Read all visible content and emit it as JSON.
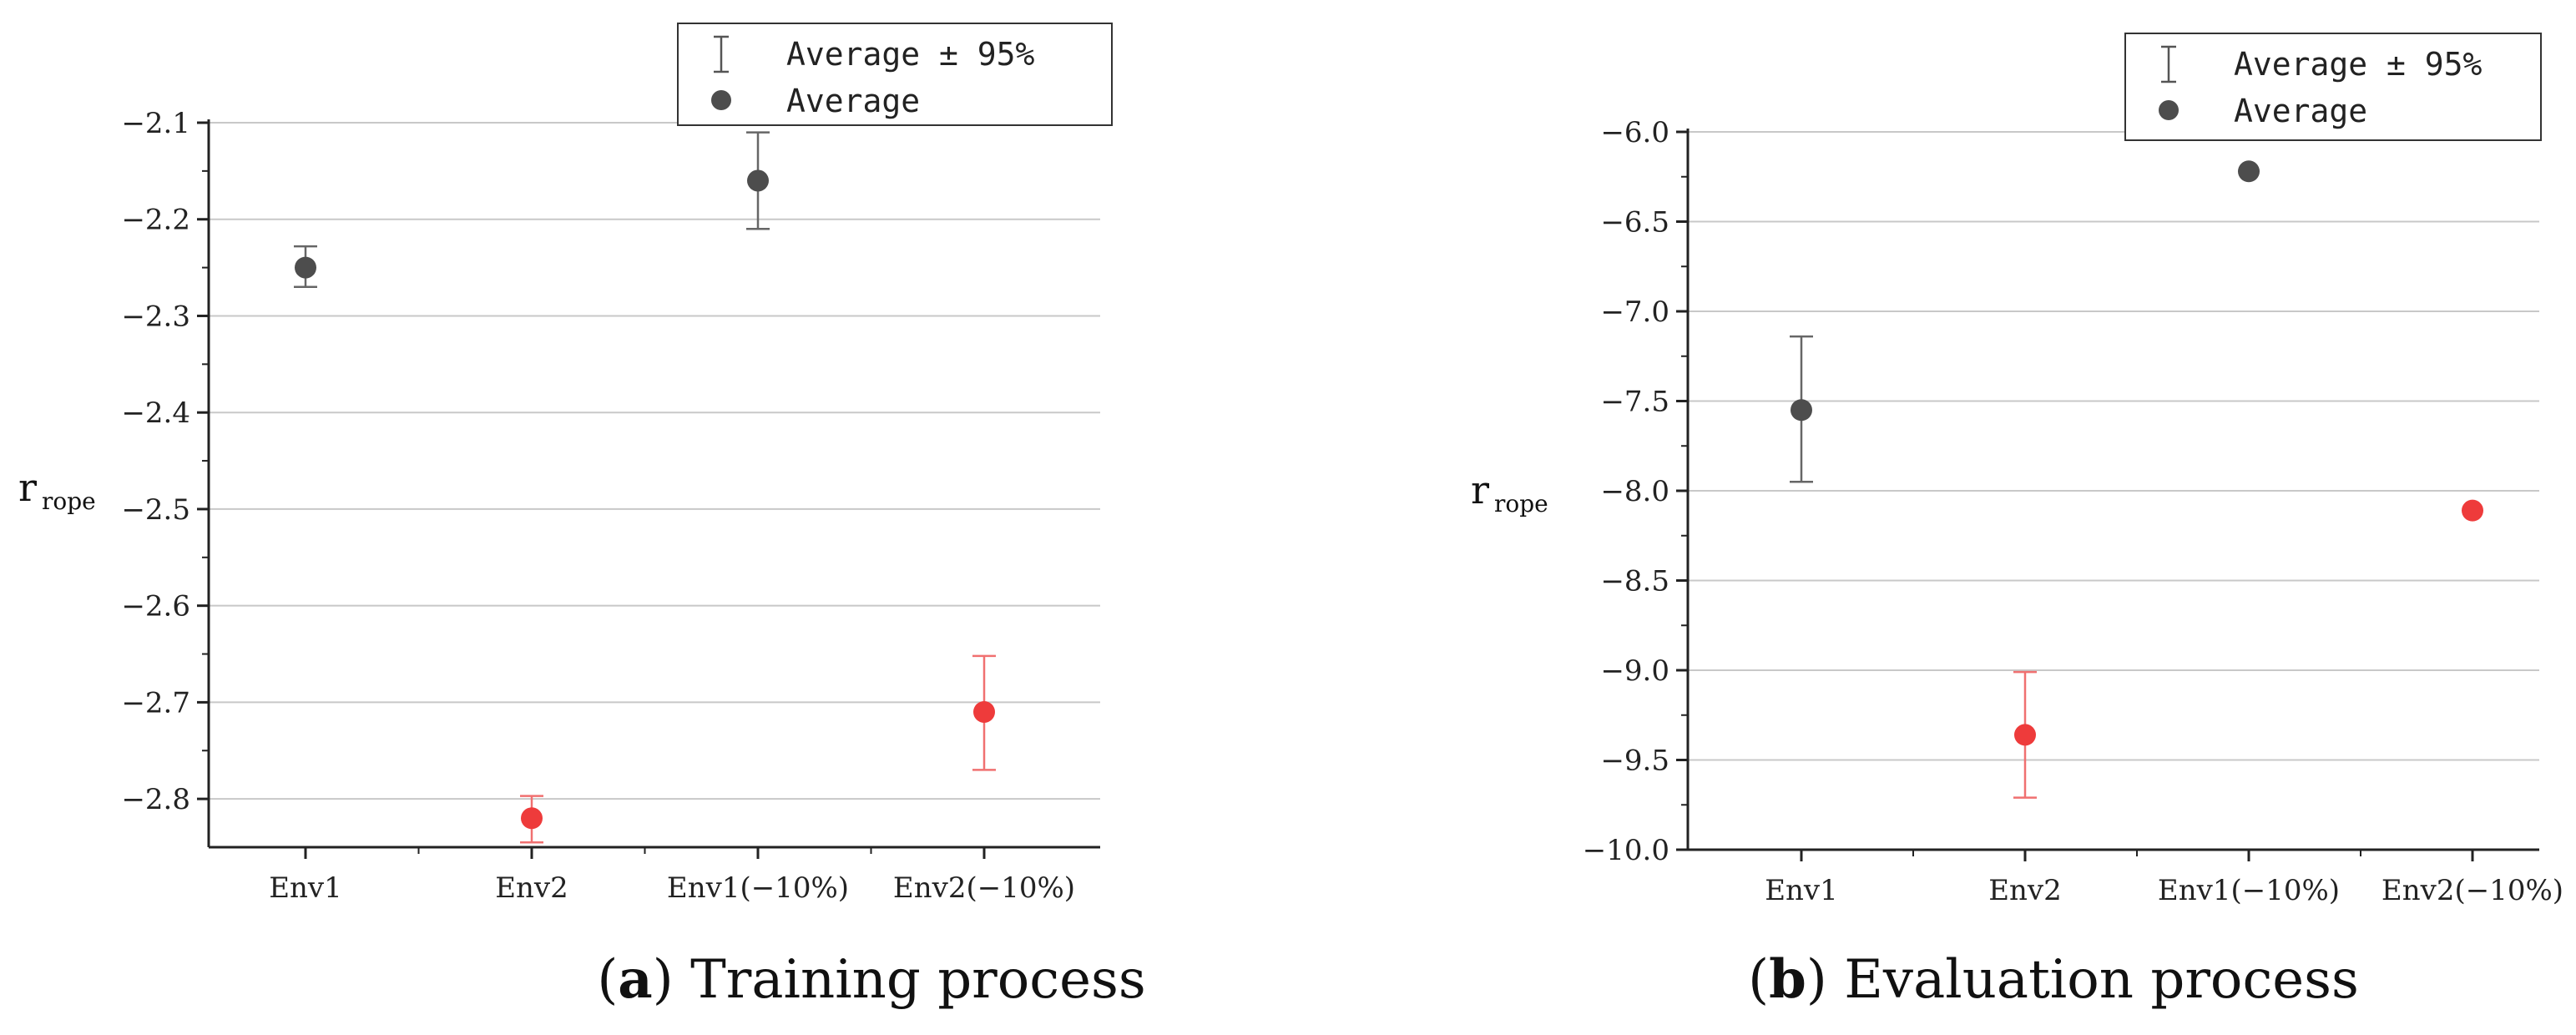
{
  "chart_data": [
    {
      "type": "scatter",
      "id": "a",
      "caption_letter": "a",
      "caption_text": "Training process",
      "ylabel_main": "r",
      "ylabel_sub": "rope",
      "ylim": [
        -2.85,
        -2.1
      ],
      "yticks": [
        -2.1,
        -2.2,
        -2.3,
        -2.4,
        -2.5,
        -2.6,
        -2.7,
        -2.8
      ],
      "ytick_labels": [
        "−2.1",
        "−2.2",
        "−2.3",
        "−2.4",
        "−2.5",
        "−2.6",
        "−2.7",
        "−2.8"
      ],
      "grid": true,
      "categories": [
        "Env1",
        "Env2",
        "Env1(−10%)",
        "Env2(−10%)"
      ],
      "averages": [
        -2.25,
        -2.82,
        -2.16,
        -2.71
      ],
      "ci_low": [
        -2.27,
        -2.845,
        -2.21,
        -2.77
      ],
      "ci_high": [
        -2.228,
        -2.797,
        -2.11,
        -2.652
      ],
      "colors": [
        "#4d4d4d",
        "#ee3b3b",
        "#4d4d4d",
        "#ee3b3b"
      ],
      "legend": {
        "errorbar_label": "Average ± 95%",
        "marker_label": "Average",
        "placement": "top-right"
      }
    },
    {
      "type": "scatter",
      "id": "b",
      "caption_letter": "b",
      "caption_text": "Evaluation process",
      "ylabel_main": "r",
      "ylabel_sub": "rope",
      "ylim": [
        -10.0,
        -6.0
      ],
      "yticks": [
        -6.0,
        -6.5,
        -7.0,
        -7.5,
        -8.0,
        -8.5,
        -9.0,
        -9.5,
        -10.0
      ],
      "ytick_labels": [
        "−6.0",
        "−6.5",
        "−7.0",
        "−7.5",
        "−8.0",
        "−8.5",
        "−9.0",
        "−9.5",
        "−10.0"
      ],
      "grid": true,
      "categories": [
        "Env1",
        "Env2",
        "Env1(−10%)",
        "Env2(−10%)"
      ],
      "averages": [
        -7.55,
        -9.36,
        -6.22,
        -8.11
      ],
      "ci_low": [
        -7.95,
        -9.71,
        -6.22,
        -8.11
      ],
      "ci_high": [
        -7.14,
        -9.01,
        -6.22,
        -8.11
      ],
      "colors": [
        "#4d4d4d",
        "#ee3b3b",
        "#4d4d4d",
        "#ee3b3b"
      ],
      "legend": {
        "errorbar_label": "Average ± 95%",
        "marker_label": "Average",
        "placement": "top-right"
      }
    }
  ]
}
